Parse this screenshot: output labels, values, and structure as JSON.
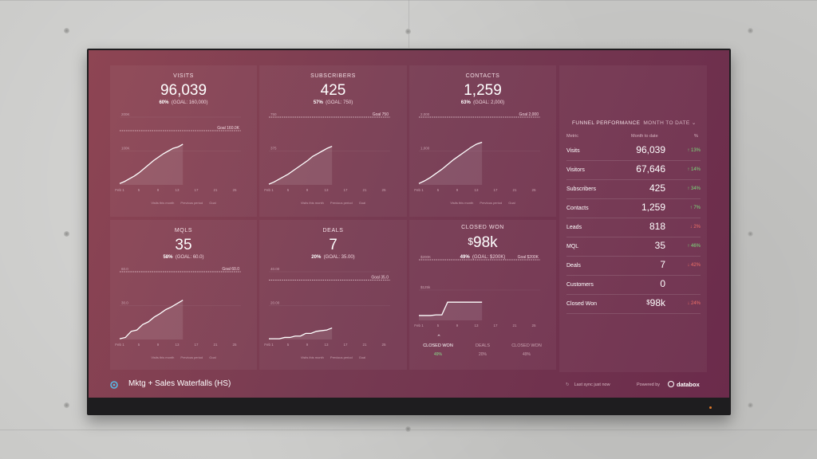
{
  "dashboard": {
    "title": "Mktg + Sales Waterfalls (HS)",
    "last_sync": "Last sync just now",
    "powered_by": "Powered by",
    "brand": "databox"
  },
  "colors": {
    "background": "#7b3a52",
    "up": "#7bdc7b",
    "down": "#f07068",
    "line": "#ffffff",
    "goal": "#f3d9e1"
  },
  "kpis": [
    {
      "title": "VISITS",
      "value": "96,039",
      "pct": "60%",
      "goal_text": "(GOAL: 160,000)",
      "goal_label": "Goal 160.0K",
      "y_ticks": [
        "200K",
        "100K"
      ],
      "x_ticks": [
        "Feb 1",
        "5",
        "9",
        "13",
        "17",
        "21",
        "25"
      ],
      "legend": [
        "Visits this month",
        "Previous period",
        "Goal"
      ],
      "series": [
        2,
        5,
        9,
        13,
        18,
        24,
        30,
        36,
        41,
        46,
        50,
        54,
        56,
        60
      ],
      "goal_value": 80,
      "ymax": 100
    },
    {
      "title": "SUBSCRIBERS",
      "value": "425",
      "pct": "57%",
      "goal_text": "(GOAL: 750)",
      "goal_label": "Goal 750",
      "y_ticks": [
        "750",
        "375"
      ],
      "x_ticks": [
        "Feb 1",
        "5",
        "9",
        "13",
        "17",
        "21",
        "25"
      ],
      "legend": [
        "Visits this month",
        "Previous period",
        "Goal"
      ],
      "series": [
        1,
        4,
        8,
        12,
        16,
        21,
        26,
        31,
        36,
        42,
        46,
        50,
        54,
        57
      ],
      "goal_value": 100,
      "ymax": 100
    },
    {
      "title": "CONTACTS",
      "value": "1,259",
      "pct": "63%",
      "goal_text": "(GOAL: 2,000)",
      "goal_label": "Goal 2,000",
      "y_ticks": [
        "2,000",
        "1,000"
      ],
      "x_ticks": [
        "Feb 1",
        "5",
        "9",
        "13",
        "17",
        "21",
        "25"
      ],
      "legend": [
        "Visits this month",
        "Previous period",
        "Goal"
      ],
      "series": [
        2,
        6,
        11,
        17,
        23,
        30,
        37,
        43,
        49,
        55,
        60,
        63
      ],
      "goal_value": 100,
      "ymax": 100
    },
    {
      "title": "MQLS",
      "value": "35",
      "pct": "58%",
      "goal_text": "(GOAL: 60.0)",
      "goal_label": "Goal 60.0",
      "y_ticks": [
        "60.0",
        "30.0"
      ],
      "x_ticks": [
        "Feb 1",
        "5",
        "9",
        "13",
        "17",
        "21",
        "25"
      ],
      "legend": [
        "Visits this month",
        "Previous period",
        "Goal"
      ],
      "series": [
        1,
        3,
        12,
        14,
        22,
        26,
        33,
        38,
        44,
        48,
        53,
        58
      ],
      "goal_value": 100,
      "ymax": 100
    },
    {
      "title": "DEALS",
      "value": "7",
      "pct": "20%",
      "goal_text": "(GOAL: 35.00)",
      "goal_label": "Goal 35.0",
      "y_ticks": [
        "40.00",
        "20.00"
      ],
      "x_ticks": [
        "Feb 1",
        "5",
        "9",
        "13",
        "17",
        "21",
        "25"
      ],
      "legend": [
        "Visits this month",
        "Previous period",
        "Goal"
      ],
      "series": [
        1,
        1,
        1,
        3,
        3,
        5,
        5,
        9,
        9,
        12,
        13,
        14,
        17
      ],
      "goal_value": 87.5,
      "ymax": 100
    }
  ],
  "closed_won": {
    "title": "CLOSED WON",
    "currency": "$",
    "value": "98k",
    "pct": "49%",
    "goal_text": "(GOAL: $200K)",
    "goal_label": "Goal $200K",
    "y_ticks": [
      "$200K",
      "$125k"
    ],
    "x_ticks": [
      "Feb 1",
      "5",
      "9",
      "13",
      "17",
      "21",
      "25"
    ],
    "series": [
      8,
      8,
      8,
      9,
      9,
      30,
      30,
      30,
      30,
      30,
      30,
      30
    ],
    "goal_value": 100,
    "ymax": 100,
    "tabs": [
      {
        "label": "CLOSED WON",
        "pct": "49%"
      },
      {
        "label": "DEALS",
        "pct": "20%"
      },
      {
        "label": "CLOSED WON",
        "pct": "49%"
      }
    ]
  },
  "funnel": {
    "title": "FUNNEL PERFORMANCE",
    "range": "MONTH TO DATE",
    "headers": {
      "metric": "Metric",
      "mtd": "Month to date",
      "change": "%"
    },
    "rows": [
      {
        "metric": "Visits",
        "value": "96,039",
        "change": "↑ 13%",
        "dir": "up"
      },
      {
        "metric": "Visitors",
        "value": "67,646",
        "change": "↑ 14%",
        "dir": "up"
      },
      {
        "metric": "Subscribers",
        "value": "425",
        "change": "↑ 34%",
        "dir": "up"
      },
      {
        "metric": "Contacts",
        "value": "1,259",
        "change": "↑ 7%",
        "dir": "up"
      },
      {
        "metric": "Leads",
        "value": "818",
        "change": "↓ 2%",
        "dir": "down"
      },
      {
        "metric": "MQL",
        "value": "35",
        "change": "↑ 46%",
        "dir": "up"
      },
      {
        "metric": "Deals",
        "value": "7",
        "change": "↓ 42%",
        "dir": "down"
      },
      {
        "metric": "Customers",
        "value": "0",
        "change": "",
        "dir": ""
      },
      {
        "metric": "Closed Won",
        "currency": "$",
        "value": "98k",
        "change": "↓ 24%",
        "dir": "down"
      }
    ]
  }
}
